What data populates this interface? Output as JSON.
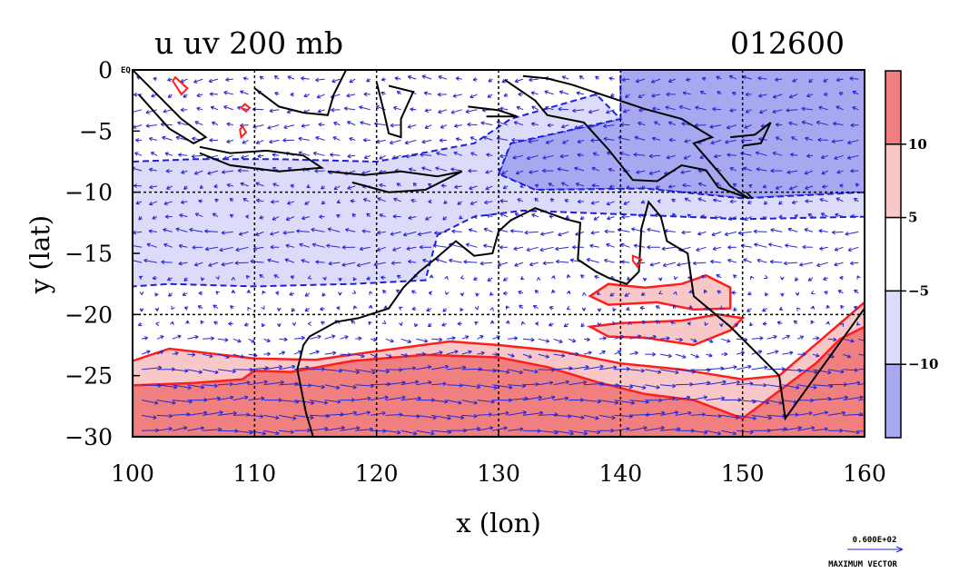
{
  "title": "u uv 200 mb",
  "date_label": "012600",
  "eq_label": "EQ",
  "chart_data": {
    "type": "map",
    "variable": "u uv 200 mb",
    "xlabel": "x (lon)",
    "ylabel": "y (lat)",
    "xlim": [
      100,
      160
    ],
    "ylim": [
      -30,
      0
    ],
    "x_ticks": [
      100,
      110,
      120,
      130,
      140,
      150,
      160
    ],
    "x_tick_labels": [
      "100",
      "110",
      "120",
      "130",
      "140",
      "150",
      "160"
    ],
    "y_ticks": [
      0,
      -5,
      -10,
      -15,
      -20,
      -25,
      -30
    ],
    "y_tick_labels": [
      "0",
      "−5",
      "−10",
      "−15",
      "−20",
      "−25",
      "−30"
    ],
    "grid": true,
    "colorbar": {
      "labels": [
        "10",
        "5",
        "−5",
        "−10"
      ],
      "colors": [
        "#f08080",
        "#f8c8c8",
        "#ffffff",
        "#dcdcfa",
        "#a8a8f0"
      ]
    },
    "regions": [
      {
        "name": "easterly-north",
        "fill": "#a8a8f0",
        "points": [
          [
            140,
            0
          ],
          [
            160,
            0
          ],
          [
            160,
            -10
          ],
          [
            150,
            -10.5
          ],
          [
            142,
            -9.7
          ],
          [
            133,
            -9.8
          ],
          [
            130,
            -8.5
          ],
          [
            131,
            -6
          ],
          [
            140,
            -4
          ]
        ]
      },
      {
        "name": "easterly-band",
        "fill": "#a8a8f0",
        "points": [
          [
            100,
            -13.5
          ],
          [
            110,
            -13.3
          ],
          [
            118,
            -13.6
          ],
          [
            124,
            -14
          ],
          [
            124,
            -17.2
          ],
          [
            118,
            -16.5
          ],
          [
            110,
            -16.6
          ],
          [
            103,
            -16.3
          ],
          [
            100,
            -16.4
          ]
        ]
      },
      {
        "name": "weak-easterly-north",
        "fill": "#dcdcfa",
        "points": [
          [
            100,
            -7.5
          ],
          [
            105,
            -7.3
          ],
          [
            112,
            -7.3
          ],
          [
            120,
            -7.5
          ],
          [
            128,
            -6
          ],
          [
            131,
            -4
          ],
          [
            138,
            -2
          ],
          [
            140,
            -4
          ],
          [
            131,
            -6
          ],
          [
            130,
            -8.5
          ],
          [
            133,
            -9.8
          ],
          [
            142,
            -9.7
          ],
          [
            150,
            -10.5
          ],
          [
            160,
            -10
          ],
          [
            160,
            -12
          ],
          [
            150,
            -12.2
          ],
          [
            140,
            -11.8
          ],
          [
            132,
            -11.5
          ],
          [
            128,
            -12
          ],
          [
            125,
            -13.5
          ],
          [
            124,
            -17.2
          ],
          [
            118,
            -17.5
          ],
          [
            110,
            -17.7
          ],
          [
            103,
            -17.5
          ],
          [
            100,
            -17.7
          ]
        ]
      },
      {
        "name": "westerly-jet",
        "fill": "#f8c8c8",
        "points": [
          [
            100,
            -23.8
          ],
          [
            103,
            -22.8
          ],
          [
            110,
            -23.6
          ],
          [
            115,
            -23.7
          ],
          [
            120,
            -23
          ],
          [
            126,
            -22.2
          ],
          [
            130,
            -22.5
          ],
          [
            135,
            -23
          ],
          [
            140,
            -24
          ],
          [
            145,
            -24.5
          ],
          [
            150,
            -25.3
          ],
          [
            153,
            -25
          ],
          [
            160,
            -19
          ],
          [
            160,
            -30
          ],
          [
            100,
            -30
          ]
        ]
      },
      {
        "name": "westerly-jet-core",
        "fill": "#f08080",
        "points": [
          [
            100,
            -25.8
          ],
          [
            105,
            -25.6
          ],
          [
            109,
            -25.3
          ],
          [
            110,
            -24.6
          ],
          [
            113,
            -24.7
          ],
          [
            118,
            -23.8
          ],
          [
            124,
            -23.3
          ],
          [
            130,
            -23.5
          ],
          [
            134,
            -24.3
          ],
          [
            138,
            -25.5
          ],
          [
            142,
            -26.5
          ],
          [
            146,
            -27
          ],
          [
            150,
            -28.5
          ],
          [
            152,
            -27
          ],
          [
            156,
            -24
          ],
          [
            158,
            -22
          ],
          [
            160,
            -21
          ],
          [
            160,
            -30
          ],
          [
            100,
            -30
          ]
        ]
      },
      {
        "name": "jet-spur-a",
        "fill": "#f8c8c8",
        "points": [
          [
            137.5,
            -18.5
          ],
          [
            139,
            -17.5
          ],
          [
            142,
            -17.8
          ],
          [
            145,
            -17.5
          ],
          [
            147,
            -16.8
          ],
          [
            149,
            -17.8
          ],
          [
            149,
            -19.5
          ],
          [
            146,
            -19.6
          ],
          [
            143,
            -19
          ],
          [
            139,
            -19.2
          ]
        ]
      },
      {
        "name": "jet-spur-b",
        "fill": "#f8c8c8",
        "points": [
          [
            137.5,
            -21
          ],
          [
            140,
            -20.7
          ],
          [
            145,
            -20.5
          ],
          [
            148,
            -20
          ],
          [
            150,
            -20.3
          ],
          [
            149,
            -21.3
          ],
          [
            146,
            -22.5
          ],
          [
            142,
            -21.9
          ],
          [
            139,
            -21.8
          ]
        ]
      }
    ],
    "coastlines": [
      {
        "name": "sumatra",
        "points": [
          [
            100,
            0
          ],
          [
            102,
            -2
          ],
          [
            104,
            -4
          ],
          [
            106,
            -5.5
          ],
          [
            105,
            -6
          ],
          [
            103,
            -4.8
          ],
          [
            100.5,
            -2
          ]
        ]
      },
      {
        "name": "java",
        "points": [
          [
            105.5,
            -6.3
          ],
          [
            108,
            -6.8
          ],
          [
            111,
            -6.6
          ],
          [
            114,
            -7
          ],
          [
            115.5,
            -8
          ],
          [
            112,
            -8.3
          ],
          [
            108,
            -7.8
          ],
          [
            105.5,
            -6.8
          ]
        ]
      },
      {
        "name": "lesser-sunda",
        "points": [
          [
            116,
            -8.3
          ],
          [
            119,
            -8.6
          ],
          [
            122,
            -8.3
          ],
          [
            125,
            -8.7
          ],
          [
            127,
            -8.3
          ],
          [
            124,
            -9.8
          ],
          [
            121,
            -10
          ],
          [
            118,
            -9.2
          ]
        ]
      },
      {
        "name": "borneo",
        "points": [
          [
            110,
            -1.5
          ],
          [
            112,
            -3
          ],
          [
            114,
            -3.5
          ],
          [
            116,
            -3.7
          ],
          [
            116.5,
            -2
          ],
          [
            117.5,
            0
          ]
        ]
      },
      {
        "name": "sulawesi",
        "points": [
          [
            120,
            -1
          ],
          [
            120.5,
            -3
          ],
          [
            121,
            -5.2
          ],
          [
            122,
            -5.5
          ],
          [
            122,
            -4
          ],
          [
            123,
            -1.8
          ],
          [
            121,
            -1.3
          ]
        ]
      },
      {
        "name": "halmahera-seram",
        "points": [
          [
            127.5,
            -3
          ],
          [
            130,
            -3.3
          ],
          [
            131.5,
            -3.8
          ],
          [
            129,
            -3.8
          ]
        ]
      },
      {
        "name": "new-guinea",
        "points": [
          [
            130.5,
            -0.8
          ],
          [
            133,
            -2.5
          ],
          [
            134,
            -3.7
          ],
          [
            137,
            -4.3
          ],
          [
            139,
            -6.5
          ],
          [
            141,
            -9
          ],
          [
            143,
            -9.1
          ],
          [
            145,
            -7.8
          ],
          [
            147,
            -8.2
          ],
          [
            148,
            -9.6
          ],
          [
            150.5,
            -10.5
          ],
          [
            149,
            -9.5
          ],
          [
            148,
            -8.3
          ],
          [
            146,
            -6
          ],
          [
            147.5,
            -5.5
          ],
          [
            145,
            -4
          ],
          [
            142,
            -3.2
          ],
          [
            139,
            -2.2
          ],
          [
            136,
            -1.2
          ],
          [
            134,
            -0.7
          ],
          [
            132,
            -0.5
          ]
        ]
      },
      {
        "name": "new-britain",
        "points": [
          [
            149,
            -5.5
          ],
          [
            151,
            -5.3
          ],
          [
            152.3,
            -4.3
          ],
          [
            151.5,
            -6
          ],
          [
            150,
            -6.2
          ]
        ]
      },
      {
        "name": "australia",
        "points": [
          [
            160,
            -19.5
          ],
          [
            153.5,
            -28.5
          ],
          [
            153,
            -25
          ],
          [
            150.5,
            -22.5
          ],
          [
            149,
            -21
          ],
          [
            146,
            -18.5
          ],
          [
            145.5,
            -15
          ],
          [
            143.8,
            -14
          ],
          [
            143.3,
            -12
          ],
          [
            142.3,
            -10.8
          ],
          [
            141.7,
            -13
          ],
          [
            141.5,
            -16.5
          ],
          [
            140.5,
            -17.5
          ],
          [
            139,
            -17
          ],
          [
            138,
            -16.5
          ],
          [
            136.5,
            -15.5
          ],
          [
            136.7,
            -12.5
          ],
          [
            135.5,
            -12.2
          ],
          [
            133,
            -11.3
          ],
          [
            131,
            -12.3
          ],
          [
            130,
            -13.2
          ],
          [
            129.5,
            -15
          ],
          [
            128,
            -15.2
          ],
          [
            126.5,
            -14
          ],
          [
            125,
            -15.3
          ],
          [
            123.5,
            -16.5
          ],
          [
            122.2,
            -17.8
          ],
          [
            121,
            -19.5
          ],
          [
            118.5,
            -20.3
          ],
          [
            116.7,
            -20.6
          ],
          [
            114.5,
            -21.8
          ],
          [
            114,
            -22.5
          ],
          [
            113.5,
            -24.5
          ],
          [
            113.8,
            -26
          ],
          [
            114.2,
            -28
          ],
          [
            114.8,
            -30
          ]
        ]
      },
      {
        "name": "tasmania-strait",
        "points": [
          [
            150.3,
            -10
          ],
          [
            150.8,
            -10.5
          ]
        ]
      }
    ],
    "red_contours": [
      [
        [
          103.5,
          -0.6
        ],
        [
          104.5,
          -1.5
        ],
        [
          104,
          -2
        ],
        [
          103.3,
          -0.9
        ]
      ],
      [
        [
          109.2,
          -2.8
        ],
        [
          109.6,
          -3.1
        ],
        [
          109.3,
          -3.4
        ],
        [
          108.9,
          -3.1
        ]
      ],
      [
        [
          109,
          -4.6
        ],
        [
          109.3,
          -5.1
        ],
        [
          108.9,
          -5.5
        ],
        [
          108.8,
          -4.9
        ]
      ],
      [
        [
          141,
          -15.2
        ],
        [
          141.7,
          -15.5
        ],
        [
          141.4,
          -16.1
        ],
        [
          141,
          -15.6
        ]
      ]
    ],
    "vectors": {
      "maximum_vector_label": "MAXIMUM VECTOR",
      "maximum_vector_value": "0.600E+02"
    }
  }
}
